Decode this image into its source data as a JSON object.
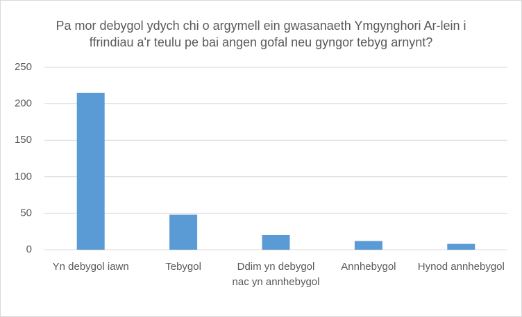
{
  "chart_data": {
    "type": "bar",
    "title": "Pa mor debygol ydych chi o argymell ein gwasanaeth Ymgynghori Ar-lein i ffrindiau a'r teulu pe bai angen gofal neu gyngor tebyg arnynt?",
    "categories": [
      "Yn debygol iawn",
      "Tebygol",
      "Ddim yn debygol nac yn annhebygol",
      "Annhebygol",
      "Hynod annhebygol"
    ],
    "values": [
      215,
      48,
      20,
      12,
      8
    ],
    "color": "#5b9bd5",
    "ylim": [
      0,
      250
    ],
    "yticks": [
      0,
      50,
      100,
      150,
      200,
      250
    ],
    "grid": true
  }
}
